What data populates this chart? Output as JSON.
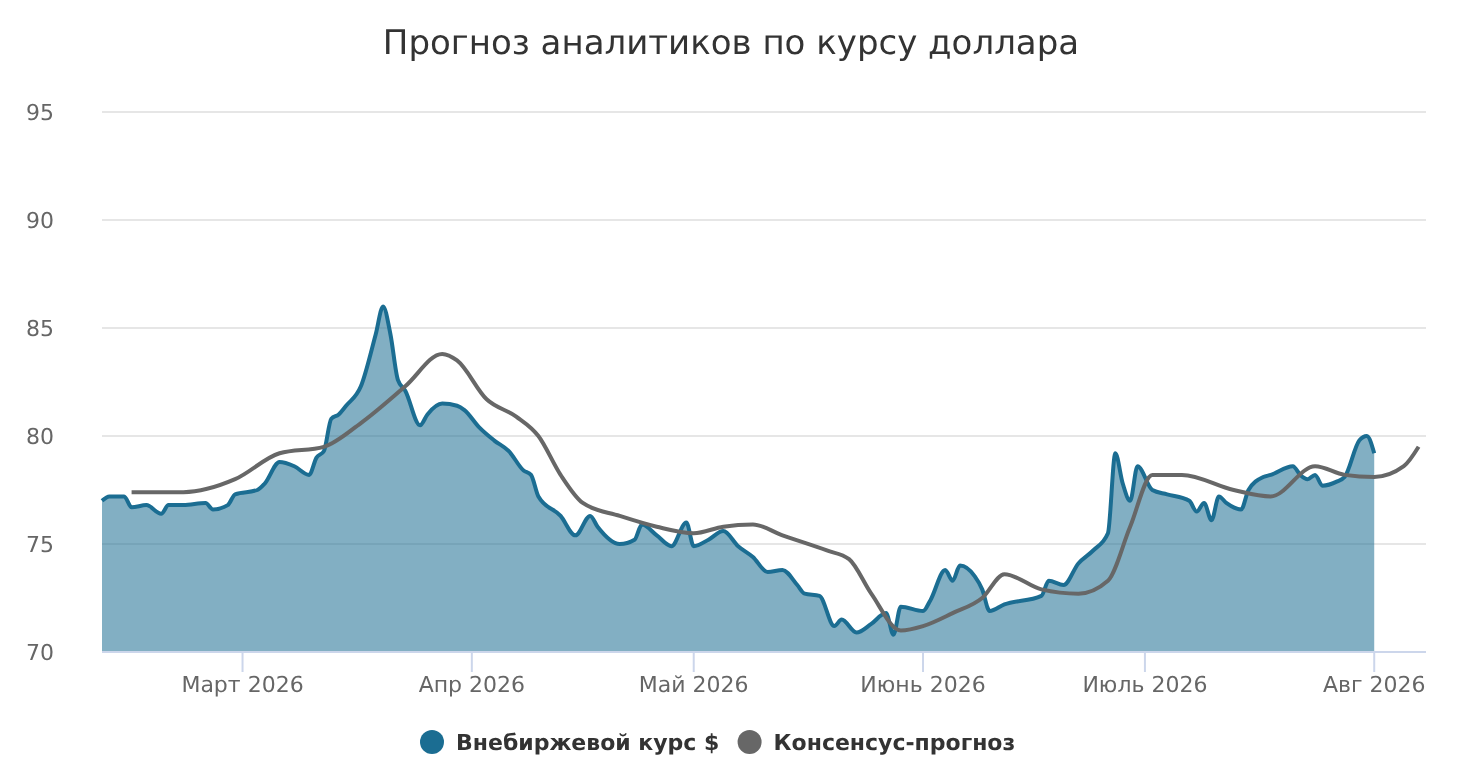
{
  "chart_data": {
    "type": "area",
    "title": "Прогноз аналитиков по курсу доллара",
    "xlim": [
      "2026-02-10",
      "2026-08-08"
    ],
    "xticks": [
      {
        "value": "2026-03-01",
        "label": "Март 2026"
      },
      {
        "value": "2026-04-01",
        "label": "Апр 2026"
      },
      {
        "value": "2026-05-01",
        "label": "Май 2026"
      },
      {
        "value": "2026-06-01",
        "label": "Июнь 2026"
      },
      {
        "value": "2026-07-01",
        "label": "Июль 2026"
      },
      {
        "value": "2026-08-01",
        "label": "Авг 2026"
      }
    ],
    "ylim": [
      70,
      95
    ],
    "yticks": [
      70,
      75,
      80,
      85,
      90,
      95
    ],
    "grid": "y",
    "legend": "bottom",
    "series": [
      {
        "name": "Внебиржевой курс $",
        "color": "#1b6d92",
        "x": [
          "2026-02-10",
          "2026-02-11",
          "2026-02-13",
          "2026-02-14",
          "2026-02-16",
          "2026-02-18",
          "2026-02-19",
          "2026-02-21",
          "2026-02-24",
          "2026-02-25",
          "2026-02-27",
          "2026-02-28",
          "2026-03-03",
          "2026-03-04",
          "2026-03-06",
          "2026-03-08",
          "2026-03-10",
          "2026-03-11",
          "2026-03-12",
          "2026-03-13",
          "2026-03-14",
          "2026-03-15",
          "2026-03-17",
          "2026-03-19",
          "2026-03-20",
          "2026-03-21",
          "2026-03-22",
          "2026-03-23",
          "2026-03-25",
          "2026-03-26",
          "2026-03-28",
          "2026-03-30",
          "2026-03-31",
          "2026-04-02",
          "2026-04-04",
          "2026-04-06",
          "2026-04-08",
          "2026-04-09",
          "2026-04-10",
          "2026-04-13",
          "2026-04-15",
          "2026-04-17",
          "2026-04-18",
          "2026-04-21",
          "2026-04-23",
          "2026-04-24",
          "2026-04-26",
          "2026-04-28",
          "2026-04-30",
          "2026-05-01",
          "2026-05-03",
          "2026-05-05",
          "2026-05-07",
          "2026-05-09",
          "2026-05-11",
          "2026-05-13",
          "2026-05-15",
          "2026-05-16",
          "2026-05-18",
          "2026-05-20",
          "2026-05-21",
          "2026-05-23",
          "2026-05-25",
          "2026-05-27",
          "2026-05-28",
          "2026-05-29",
          "2026-06-01",
          "2026-06-02",
          "2026-06-04",
          "2026-06-05",
          "2026-06-06",
          "2026-06-08",
          "2026-06-09",
          "2026-06-10",
          "2026-06-12",
          "2026-06-17",
          "2026-06-18",
          "2026-06-20",
          "2026-06-22",
          "2026-06-24",
          "2026-06-26",
          "2026-06-27",
          "2026-06-28",
          "2026-06-29",
          "2026-06-30",
          "2026-07-02",
          "2026-07-04",
          "2026-07-07",
          "2026-07-08",
          "2026-07-09",
          "2026-07-10",
          "2026-07-11",
          "2026-07-12",
          "2026-07-14",
          "2026-07-15",
          "2026-07-17",
          "2026-07-18",
          "2026-07-21",
          "2026-07-22",
          "2026-07-23",
          "2026-07-24",
          "2026-07-25",
          "2026-07-27",
          "2026-07-28",
          "2026-07-30",
          "2026-07-31",
          "2026-08-01"
        ],
        "values": [
          77.0,
          77.2,
          77.2,
          76.7,
          76.8,
          76.4,
          76.8,
          76.8,
          76.9,
          76.6,
          76.8,
          77.3,
          77.5,
          77.8,
          78.8,
          78.6,
          78.2,
          79.0,
          79.3,
          80.8,
          81.0,
          81.4,
          82.3,
          84.7,
          86.0,
          84.7,
          82.6,
          82.1,
          80.5,
          81.0,
          81.5,
          81.4,
          81.2,
          80.4,
          79.8,
          79.3,
          78.4,
          78.2,
          77.2,
          76.3,
          75.4,
          76.3,
          75.8,
          75.0,
          75.2,
          75.9,
          75.4,
          74.9,
          76.0,
          74.9,
          75.2,
          75.6,
          74.9,
          74.4,
          73.7,
          73.8,
          73.1,
          72.7,
          72.6,
          71.2,
          71.5,
          70.9,
          71.3,
          71.8,
          70.8,
          72.1,
          71.9,
          72.4,
          73.8,
          73.3,
          74.0,
          73.5,
          72.9,
          71.9,
          72.2,
          72.6,
          73.3,
          73.1,
          74.1,
          74.7,
          75.5,
          79.2,
          77.8,
          77.0,
          78.6,
          77.5,
          77.3,
          77.0,
          76.5,
          76.9,
          76.1,
          77.2,
          76.9,
          76.6,
          77.5,
          78.1,
          78.2,
          78.6,
          78.2,
          78.0,
          78.2,
          77.7,
          77.9,
          78.1,
          79.8,
          80.0,
          79.2
        ]
      },
      {
        "name": "Консенсус-прогноз",
        "type": "line",
        "color": "#676767",
        "x": [
          "2026-02-14",
          "2026-02-21",
          "2026-02-28",
          "2026-03-06",
          "2026-03-12",
          "2026-03-17",
          "2026-03-23",
          "2026-03-28",
          "2026-03-30",
          "2026-04-03",
          "2026-04-07",
          "2026-04-10",
          "2026-04-13",
          "2026-04-16",
          "2026-04-21",
          "2026-04-26",
          "2026-05-01",
          "2026-05-05",
          "2026-05-09",
          "2026-05-13",
          "2026-05-19",
          "2026-05-22",
          "2026-05-25",
          "2026-05-29",
          "2026-06-01",
          "2026-06-05",
          "2026-06-09",
          "2026-06-12",
          "2026-06-17",
          "2026-06-22",
          "2026-06-26",
          "2026-06-29",
          "2026-07-02",
          "2026-07-06",
          "2026-07-13",
          "2026-07-18",
          "2026-07-24",
          "2026-07-28",
          "2026-08-01",
          "2026-08-05",
          "2026-08-07"
        ],
        "values": [
          77.4,
          77.4,
          78.0,
          79.2,
          79.5,
          80.6,
          82.3,
          83.8,
          83.5,
          81.7,
          80.9,
          80.0,
          78.2,
          76.9,
          76.3,
          75.8,
          75.5,
          75.8,
          75.9,
          75.4,
          74.7,
          74.3,
          72.7,
          71.0,
          71.2,
          71.8,
          72.5,
          73.6,
          72.9,
          72.7,
          73.3,
          75.8,
          78.2,
          78.2,
          77.5,
          77.2,
          78.6,
          78.2,
          78.1,
          78.6,
          79.5
        ]
      }
    ]
  }
}
